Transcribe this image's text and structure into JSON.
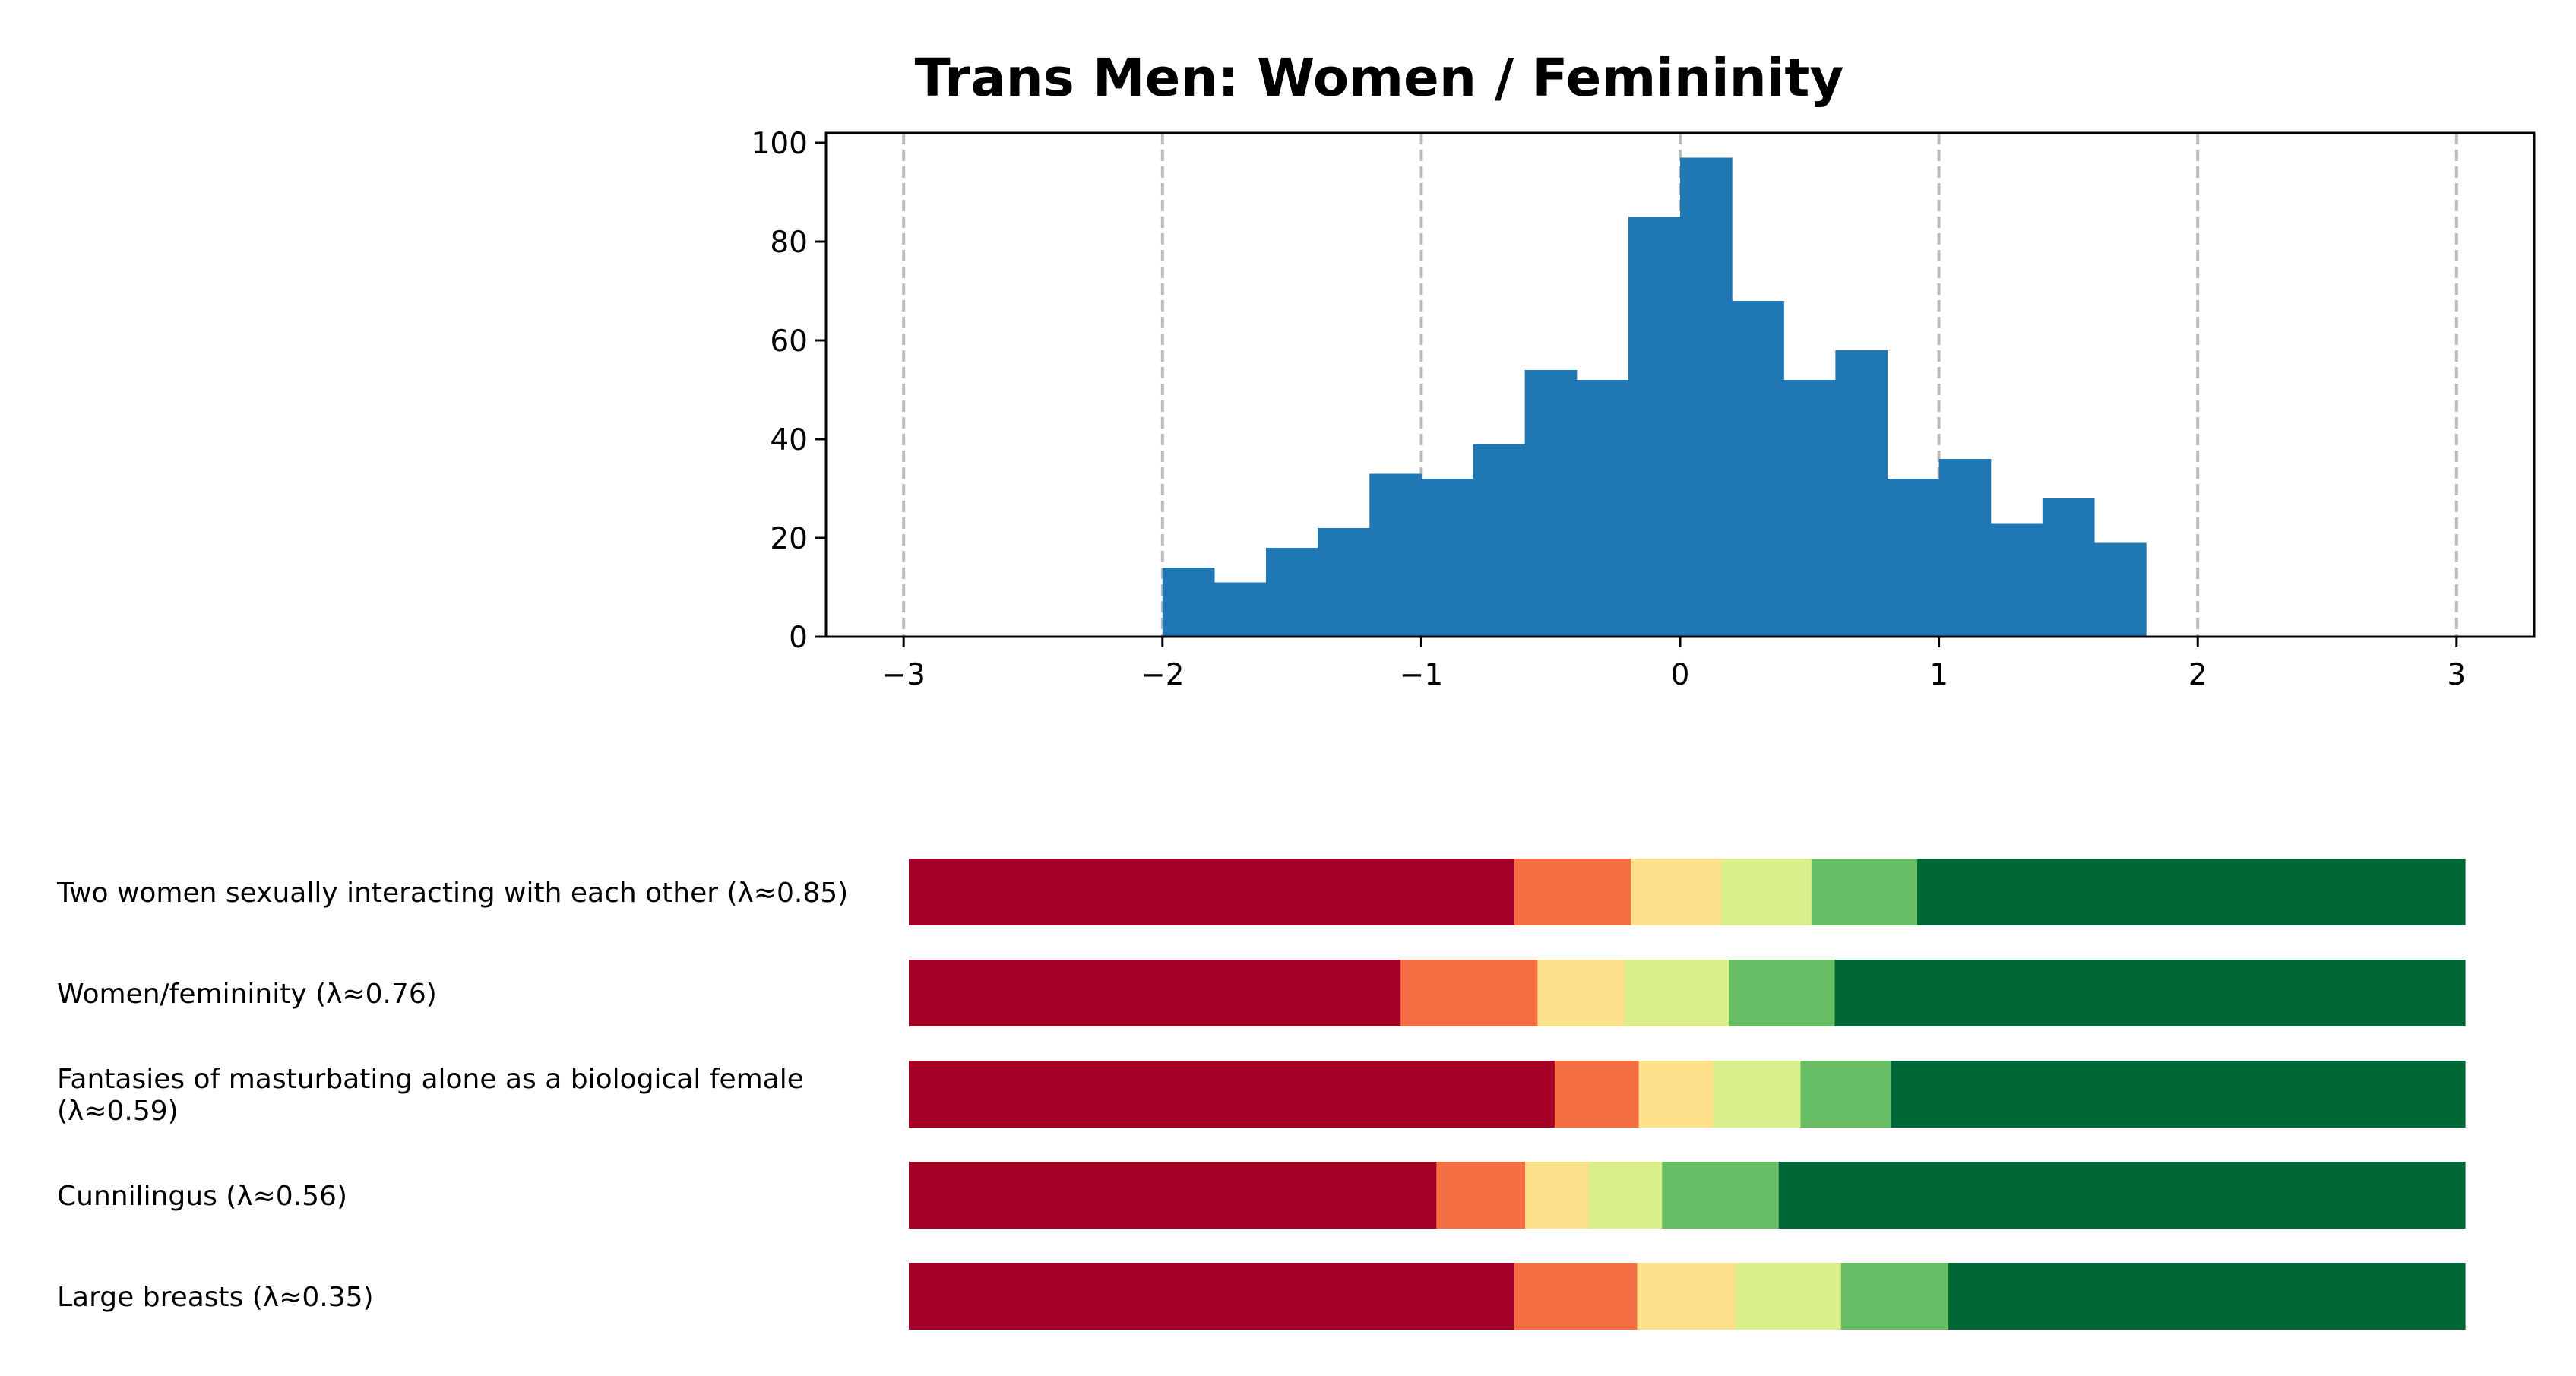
{
  "chart_data": [
    {
      "type": "bar",
      "subtype": "histogram",
      "title": "Trans Men: Women / Femininity",
      "xlabel": "",
      "ylabel": "",
      "xlim": [
        -3.3,
        3.3
      ],
      "ylim": [
        0,
        102
      ],
      "bin_width": 0.2,
      "bins_start": [
        -2.0,
        -1.8,
        -1.6,
        -1.4,
        -1.2,
        -1.0,
        -0.8,
        -0.6,
        -0.4,
        -0.2,
        0.0,
        0.2,
        0.4,
        0.6,
        0.8,
        1.0,
        1.2,
        1.4,
        1.6
      ],
      "counts": [
        14,
        11,
        18,
        22,
        33,
        32,
        39,
        54,
        52,
        85,
        97,
        68,
        52,
        58,
        32,
        36,
        23,
        28,
        19
      ],
      "xticks": [
        -3,
        -2,
        -1,
        0,
        1,
        2,
        3
      ],
      "xtick_labels": [
        "−3",
        "−2",
        "−1",
        "0",
        "1",
        "2",
        "3"
      ],
      "yticks": [
        0,
        20,
        40,
        60,
        80,
        100
      ],
      "ytick_labels": [
        "0",
        "20",
        "40",
        "60",
        "80",
        "100"
      ],
      "vertical_dashed_lines_at": [
        -3,
        -2,
        -1,
        0,
        1,
        2,
        3
      ],
      "grid": false,
      "colors": {
        "bars": "#1f77b4",
        "dashed_lines": "#bbbbbb"
      }
    },
    {
      "type": "bar",
      "subtype": "stacked-horizontal-100",
      "categories": [
        "Two women sexually interacting with each other (λ≈0.85)",
        "Women/femininity (λ≈0.76)",
        "Fantasies of masturbating alone as a biological female (λ≈0.59)",
        "Cunnilingus (λ≈0.56)",
        "Large breasts (λ≈0.35)"
      ],
      "label_lines": [
        [
          "Two women sexually interacting with each other (λ≈0.85)"
        ],
        [
          "Women/femininity (λ≈0.76)"
        ],
        [
          "Fantasies of masturbating alone as a biological female",
          "(λ≈0.59)"
        ],
        [
          "Cunnilingus (λ≈0.56)"
        ],
        [
          "Large breasts (λ≈0.35)"
        ]
      ],
      "segments": [
        [
          38.9,
          7.5,
          5.8,
          5.8,
          6.8,
          35.2
        ],
        [
          31.6,
          8.8,
          5.6,
          6.7,
          6.8,
          40.5
        ],
        [
          41.5,
          5.4,
          4.8,
          5.6,
          5.8,
          36.9
        ],
        [
          33.9,
          5.7,
          4.1,
          4.7,
          7.5,
          44.1
        ],
        [
          38.9,
          7.9,
          6.3,
          6.8,
          6.9,
          33.2
        ]
      ],
      "segment_colors": [
        "#a50026",
        "#f46d43",
        "#fee08b",
        "#d9ef8b",
        "#66bd63",
        "#006837"
      ],
      "xlim": [
        0,
        100
      ]
    }
  ]
}
